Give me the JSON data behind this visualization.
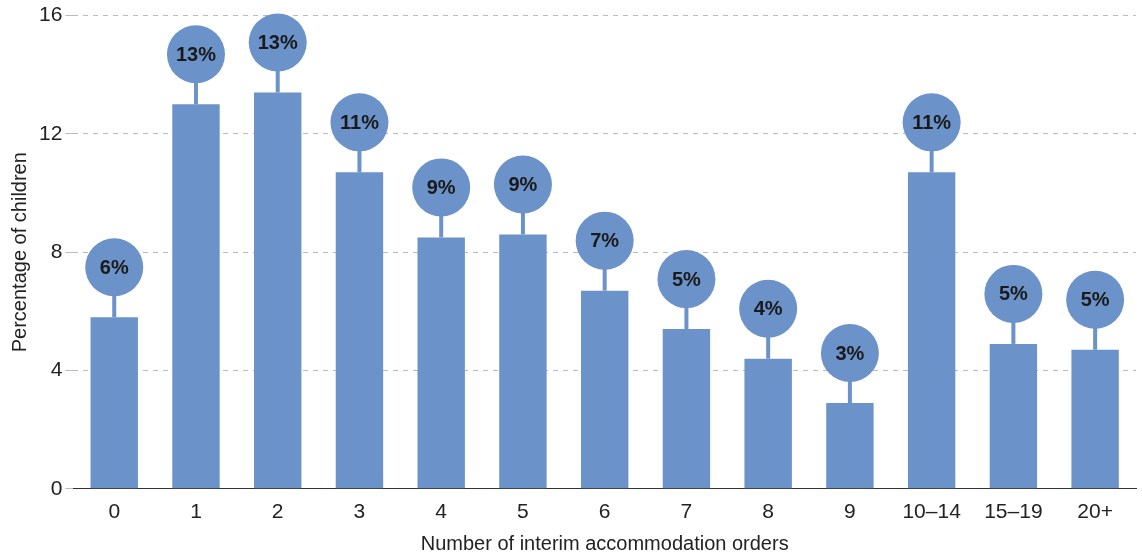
{
  "chart_data": {
    "type": "bar",
    "xlabel": "Number of interim accommodation orders",
    "ylabel": "Percentage of children",
    "categories": [
      "0",
      "1",
      "2",
      "3",
      "4",
      "5",
      "6",
      "7",
      "8",
      "9",
      "10–14",
      "15–19",
      "20+"
    ],
    "values": [
      5.8,
      13.0,
      13.4,
      10.7,
      8.5,
      8.6,
      6.7,
      5.4,
      4.4,
      2.9,
      10.7,
      4.9,
      4.7
    ],
    "value_labels": [
      "6%",
      "13%",
      "13%",
      "11%",
      "9%",
      "9%",
      "7%",
      "5%",
      "4%",
      "3%",
      "11%",
      "5%",
      "5%"
    ],
    "color": "#6b92c9",
    "ylim": [
      0,
      16
    ],
    "yticks": [
      0,
      4,
      8,
      12,
      16
    ],
    "grid": "y",
    "legend": false
  }
}
